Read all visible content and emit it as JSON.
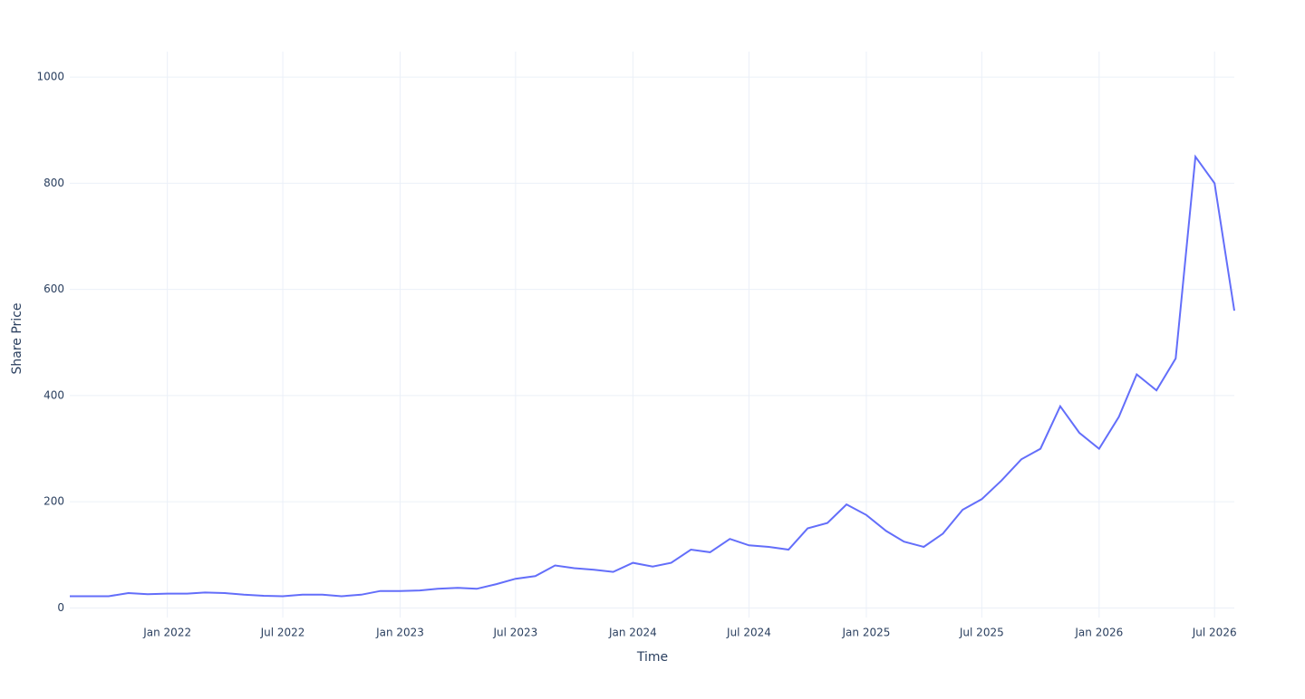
{
  "chart_data": {
    "type": "line",
    "xlabel": "Time",
    "ylabel": "Share Price",
    "x": [
      "2021-08",
      "2021-09",
      "2021-10",
      "2021-11",
      "2021-12",
      "2022-01",
      "2022-02",
      "2022-03",
      "2022-04",
      "2022-05",
      "2022-06",
      "2022-07",
      "2022-08",
      "2022-09",
      "2022-10",
      "2022-11",
      "2022-12",
      "2023-01",
      "2023-02",
      "2023-03",
      "2023-04",
      "2023-05",
      "2023-06",
      "2023-07",
      "2023-08",
      "2023-09",
      "2023-10",
      "2023-11",
      "2023-12",
      "2024-01",
      "2024-02",
      "2024-03",
      "2024-04",
      "2024-05",
      "2024-06",
      "2024-07",
      "2024-08",
      "2024-09",
      "2024-10",
      "2024-11",
      "2024-12",
      "2025-01",
      "2025-02",
      "2025-03",
      "2025-04",
      "2025-05",
      "2025-06",
      "2025-07",
      "2025-08",
      "2025-09",
      "2025-10",
      "2025-11",
      "2025-12",
      "2026-01",
      "2026-02",
      "2026-03",
      "2026-04",
      "2026-05",
      "2026-06",
      "2026-07",
      "2026-08"
    ],
    "series": [
      {
        "name": "Share Price",
        "color": "#636efa",
        "values": [
          22,
          22,
          22,
          28,
          26,
          27,
          27,
          29,
          28,
          25,
          23,
          22,
          25,
          25,
          22,
          25,
          32,
          32,
          33,
          36,
          38,
          36,
          45,
          55,
          60,
          80,
          75,
          72,
          68,
          85,
          78,
          85,
          110,
          105,
          130,
          118,
          115,
          110,
          150,
          160,
          195,
          175,
          145,
          125,
          115,
          140,
          185,
          205,
          240,
          280,
          300,
          380,
          330,
          300,
          360,
          440,
          410,
          470,
          850,
          800,
          560
        ]
      }
    ],
    "xlim": [
      "2021-08",
      "2026-08"
    ],
    "xticks": [
      {
        "value": "2022-01",
        "label": "Jan 2022"
      },
      {
        "value": "2022-07",
        "label": "Jul 2022"
      },
      {
        "value": "2023-01",
        "label": "Jan 2023"
      },
      {
        "value": "2023-07",
        "label": "Jul 2023"
      },
      {
        "value": "2024-01",
        "label": "Jan 2024"
      },
      {
        "value": "2024-07",
        "label": "Jul 2024"
      },
      {
        "value": "2025-01",
        "label": "Jan 2025"
      },
      {
        "value": "2025-07",
        "label": "Jul 2025"
      },
      {
        "value": "2026-01",
        "label": "Jan 2026"
      },
      {
        "value": "2026-07",
        "label": "Jul 2026"
      }
    ],
    "ylim": [
      -18,
      1048
    ],
    "yticks": [
      0,
      200,
      400,
      600,
      800,
      1000
    ],
    "grid": true
  }
}
